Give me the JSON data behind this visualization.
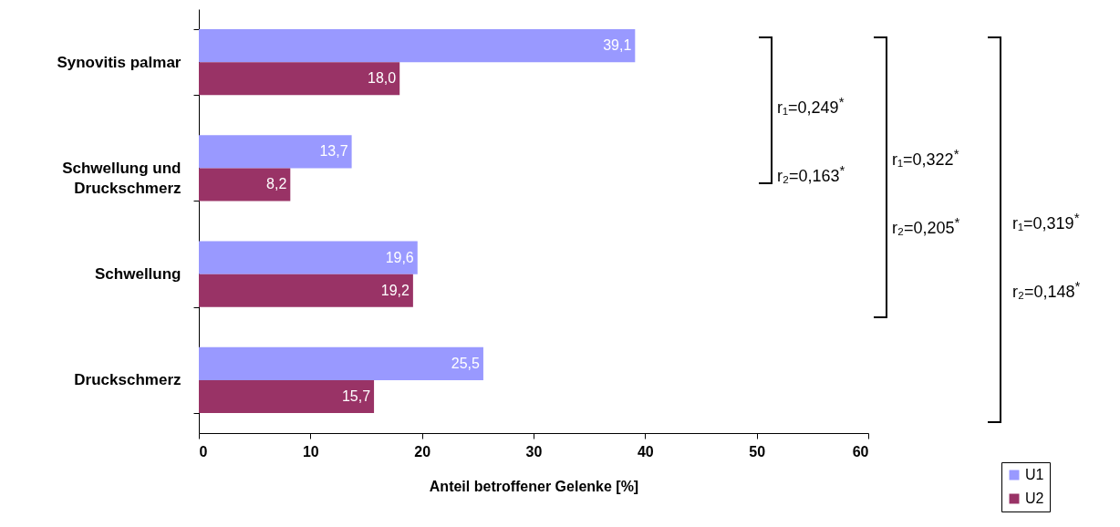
{
  "chart_data": {
    "type": "bar",
    "orientation": "horizontal",
    "categories": [
      "Synovitis palmar",
      "Schwellung und Druckschmerz",
      "Schwellung",
      "Druckschmerz"
    ],
    "series": [
      {
        "name": "U1",
        "color": "#9999ff",
        "values": [
          39.1,
          13.7,
          19.6,
          25.5
        ],
        "value_labels": [
          "39,1",
          "13,7",
          "19,6",
          "25,5"
        ]
      },
      {
        "name": "U2",
        "color": "#993366",
        "values": [
          18.0,
          8.2,
          19.2,
          15.7
        ],
        "value_labels": [
          "18,0",
          "8,2",
          "19,2",
          "15,7"
        ]
      }
    ],
    "xlabel": "Anteil betroffener Gelenke [%]",
    "xlim": [
      0,
      60
    ],
    "xticks": [
      0,
      10,
      20,
      30,
      40,
      50,
      60
    ],
    "grid": false,
    "legend": "bottom right",
    "annotations": [
      "r₁=0,249$^{*}$",
      "r₂=0,163$^{*}$",
      "r₁=0,322$^{*}$",
      "r₂=0,205$^{*}$",
      "r₁=0,319$^{*}$",
      "r₂=0,148$^{*}$"
    ]
  }
}
